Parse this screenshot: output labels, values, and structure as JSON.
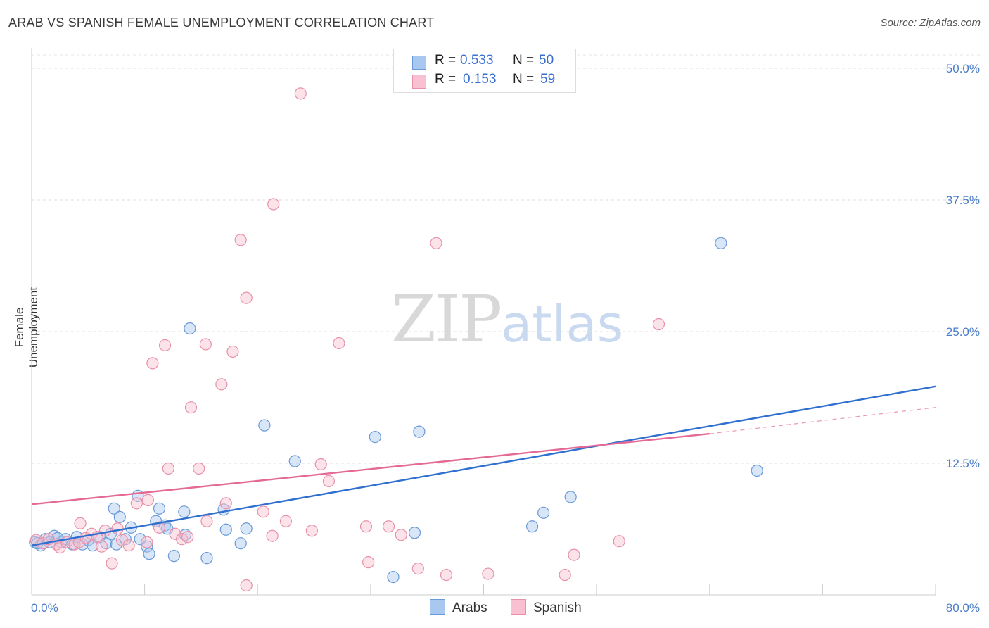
{
  "header": {
    "title": "ARAB VS SPANISH FEMALE UNEMPLOYMENT CORRELATION CHART",
    "source": "Source: ZipAtlas.com"
  },
  "watermark": {
    "zip": "ZIP",
    "atlas": "atlas"
  },
  "legend": {
    "rows": [
      {
        "r_label": "R =",
        "r_value": "0.533",
        "n_label": "N =",
        "n_value": "50",
        "color": "#a8c8f0",
        "border": "#6a9ad8"
      },
      {
        "r_label": "R =",
        "r_value": "0.153",
        "n_label": "N =",
        "n_value": "59",
        "color": "#f8c0d0",
        "border": "#e890a8"
      }
    ]
  },
  "bottom_legend": [
    {
      "label": "Arabs",
      "color": "#a8c8f0",
      "border": "#6a9ad8"
    },
    {
      "label": "Spanish",
      "color": "#f8c0d0",
      "border": "#e890a8"
    }
  ],
  "chart_data": {
    "type": "scatter",
    "title": "ARAB VS SPANISH FEMALE UNEMPLOYMENT CORRELATION CHART",
    "xlabel": "",
    "ylabel": "Female Unemployment",
    "xlim": [
      0,
      80
    ],
    "ylim": [
      0,
      50
    ],
    "x_tick_labels": [
      "0.0%",
      "80.0%"
    ],
    "y_ticks": [
      12.5,
      25.0,
      37.5,
      50.0
    ],
    "y_tick_labels": [
      "12.5%",
      "25.0%",
      "37.5%",
      "50.0%"
    ],
    "grid": true,
    "legend_position": "top-center",
    "series": [
      {
        "name": "Arabs",
        "color": "#6a9ad8",
        "fill": "#a8c8f0",
        "line_color": "#2f6fd0",
        "trend": {
          "x": [
            0,
            80
          ],
          "y": [
            4.7,
            19.8
          ]
        },
        "points": [
          [
            0.3,
            5.0
          ],
          [
            0.8,
            4.7
          ],
          [
            1.2,
            5.3
          ],
          [
            1.6,
            5.0
          ],
          [
            2.0,
            5.6
          ],
          [
            2.6,
            5.0
          ],
          [
            3.0,
            5.3
          ],
          [
            3.6,
            4.8
          ],
          [
            4.0,
            5.5
          ],
          [
            4.5,
            4.8
          ],
          [
            5.0,
            5.2
          ],
          [
            5.4,
            4.7
          ],
          [
            6.0,
            5.5
          ],
          [
            6.6,
            4.9
          ],
          [
            7.0,
            5.8
          ],
          [
            7.5,
            4.8
          ],
          [
            7.3,
            8.2
          ],
          [
            7.8,
            7.4
          ],
          [
            8.3,
            5.3
          ],
          [
            8.8,
            6.4
          ],
          [
            9.4,
            9.4
          ],
          [
            9.6,
            5.3
          ],
          [
            10.2,
            4.6
          ],
          [
            10.4,
            3.9
          ],
          [
            11.0,
            7.0
          ],
          [
            11.3,
            8.2
          ],
          [
            11.8,
            6.6
          ],
          [
            12.0,
            6.3
          ],
          [
            12.6,
            3.7
          ],
          [
            13.5,
            7.9
          ],
          [
            13.6,
            5.7
          ],
          [
            14.0,
            25.3
          ],
          [
            15.5,
            3.5
          ],
          [
            17.0,
            8.1
          ],
          [
            17.2,
            6.2
          ],
          [
            18.5,
            4.9
          ],
          [
            19.0,
            6.3
          ],
          [
            20.6,
            16.1
          ],
          [
            23.3,
            12.7
          ],
          [
            30.4,
            15.0
          ],
          [
            32.0,
            1.7
          ],
          [
            33.9,
            5.9
          ],
          [
            34.3,
            15.5
          ],
          [
            44.3,
            6.5
          ],
          [
            45.3,
            7.8
          ],
          [
            47.7,
            9.3
          ],
          [
            61.0,
            33.4
          ],
          [
            64.2,
            11.8
          ],
          [
            0.5,
            4.9
          ],
          [
            2.3,
            5.4
          ]
        ]
      },
      {
        "name": "Spanish",
        "color": "#e890a8",
        "fill": "#f8c0d0",
        "line_color": "#e46a95",
        "trend": {
          "x": [
            0,
            60
          ],
          "y": [
            8.6,
            15.3
          ]
        },
        "trend_dashed": {
          "x": [
            60,
            80
          ],
          "y": [
            15.3,
            17.8
          ]
        },
        "points": [
          [
            0.4,
            5.2
          ],
          [
            1.0,
            4.9
          ],
          [
            1.5,
            5.3
          ],
          [
            2.2,
            4.8
          ],
          [
            2.5,
            4.5
          ],
          [
            3.1,
            5.0
          ],
          [
            3.8,
            4.8
          ],
          [
            4.2,
            5.0
          ],
          [
            4.3,
            6.8
          ],
          [
            4.8,
            5.4
          ],
          [
            5.3,
            5.8
          ],
          [
            5.8,
            5.5
          ],
          [
            6.2,
            4.6
          ],
          [
            6.5,
            6.1
          ],
          [
            7.1,
            3.0
          ],
          [
            7.6,
            6.3
          ],
          [
            8.0,
            5.2
          ],
          [
            8.6,
            4.7
          ],
          [
            9.3,
            8.7
          ],
          [
            10.2,
            5.0
          ],
          [
            10.3,
            9.0
          ],
          [
            10.7,
            22.0
          ],
          [
            11.3,
            6.4
          ],
          [
            11.8,
            23.7
          ],
          [
            12.1,
            12.0
          ],
          [
            12.7,
            5.8
          ],
          [
            13.3,
            5.3
          ],
          [
            13.8,
            5.5
          ],
          [
            14.1,
            17.8
          ],
          [
            14.8,
            12.0
          ],
          [
            15.4,
            23.8
          ],
          [
            15.5,
            7.0
          ],
          [
            16.8,
            20.0
          ],
          [
            17.2,
            8.7
          ],
          [
            17.8,
            23.1
          ],
          [
            18.5,
            33.7
          ],
          [
            19.0,
            28.2
          ],
          [
            19.0,
            0.9
          ],
          [
            20.5,
            7.9
          ],
          [
            21.3,
            5.6
          ],
          [
            21.4,
            37.1
          ],
          [
            22.5,
            7.0
          ],
          [
            23.8,
            47.6
          ],
          [
            24.8,
            6.1
          ],
          [
            25.6,
            12.4
          ],
          [
            26.3,
            10.8
          ],
          [
            27.2,
            23.9
          ],
          [
            29.6,
            6.5
          ],
          [
            29.8,
            3.1
          ],
          [
            31.6,
            6.5
          ],
          [
            32.7,
            5.7
          ],
          [
            34.2,
            2.5
          ],
          [
            35.8,
            33.4
          ],
          [
            36.7,
            1.9
          ],
          [
            40.4,
            2.0
          ],
          [
            47.2,
            1.9
          ],
          [
            48.0,
            3.8
          ],
          [
            52.0,
            5.1
          ],
          [
            55.5,
            25.7
          ]
        ]
      }
    ]
  }
}
